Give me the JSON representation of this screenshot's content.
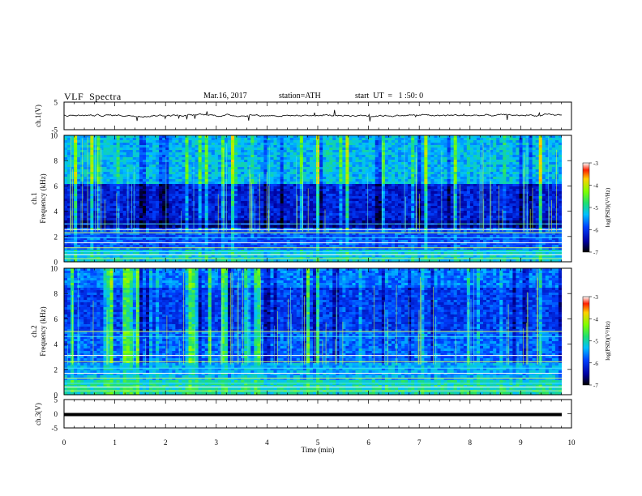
{
  "header": {
    "title": "VLF  Spectra",
    "date": "Mar.16, 2017",
    "station": "station=ATH",
    "start": "start  UT  =   1 :50: 0"
  },
  "chart_data": [
    {
      "type": "line",
      "title": "",
      "ylabel": "ch.1(V)",
      "ylim": [
        -5,
        5
      ],
      "yticks": [
        "5",
        "-5"
      ],
      "xlim": [
        0,
        10
      ],
      "series": [
        {
          "values": [
            0.2,
            0.1,
            0.3,
            -0.1,
            0.4,
            0.2,
            0.0,
            0.3,
            0.1,
            0.5
          ]
        }
      ]
    },
    {
      "type": "heatmap",
      "title": "",
      "ylabel": "ch.1\nFrequency (kHz)",
      "ylabel_top": "ch.1",
      "ylabel_bottom": "Frequency (kHz)",
      "ylim": [
        0,
        10
      ],
      "yticks": [
        "0",
        "2",
        "4",
        "6",
        "8",
        "10"
      ],
      "xlim": [
        0,
        10
      ],
      "colorbar": {
        "label": "log(PSD)(V²/Hz)",
        "ticks": [
          "-3",
          "-4",
          "-5",
          "-6",
          "-7"
        ],
        "range": [
          -7,
          -3
        ]
      }
    },
    {
      "type": "heatmap",
      "title": "",
      "ylabel": "ch.2\nFrequency (kHz)",
      "ylabel_top": "ch.2",
      "ylabel_bottom": "Frequency (kHz)",
      "ylim": [
        0,
        10
      ],
      "yticks": [
        "0",
        "2",
        "4",
        "6",
        "8",
        "10"
      ],
      "xlim": [
        0,
        10
      ],
      "colorbar": {
        "label": "log(PSD)(V²/Hz)",
        "ticks": [
          "-3",
          "-4",
          "-5",
          "-6",
          "-7"
        ],
        "range": [
          -7,
          -3
        ]
      }
    },
    {
      "type": "line",
      "title": "",
      "ylabel": "ch.3(V)",
      "ylim": [
        -5,
        5
      ],
      "yticks": [
        "5",
        "0",
        "-5"
      ],
      "xlim": [
        0,
        10
      ],
      "series": [
        {
          "values": [
            0,
            0,
            0,
            0,
            0,
            0,
            0,
            0,
            0,
            0
          ]
        }
      ]
    }
  ],
  "xaxis": {
    "label": "Time  (min)",
    "ticks": [
      "0",
      "1",
      "2",
      "3",
      "4",
      "5",
      "6",
      "7",
      "8",
      "9",
      "10"
    ],
    "range": [
      0,
      10
    ]
  }
}
